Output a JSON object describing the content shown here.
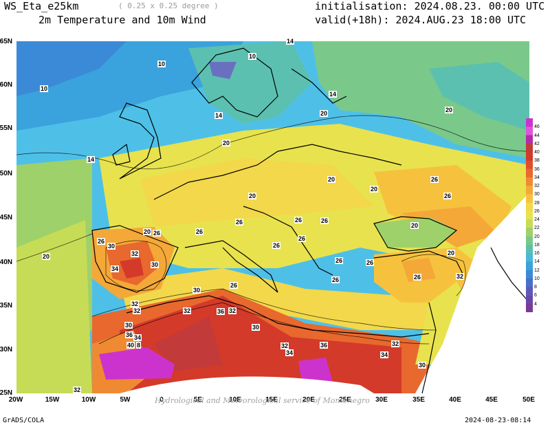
{
  "header": {
    "model": "WS_Eta_e25km",
    "resolution": "( 0.25 x 0.25 degree )",
    "field": "2m Temperature and 10m Wind",
    "init": "initialisation: 2024.08.23. 00:00 UTC",
    "valid": "valid(+18h): 2024.AUG.23 18:00 UTC"
  },
  "footer": {
    "left": "GrADS/COLA",
    "right": "2024-08-23-08:14"
  },
  "credit": "Hydrological and Meteorological service of Montenegro",
  "axes": {
    "lat_labels": [
      "65N",
      "60N",
      "55N",
      "50N",
      "45N",
      "40N",
      "35N",
      "30N",
      "25N"
    ],
    "lon_labels": [
      "20W",
      "15W",
      "10W",
      "5W",
      "0",
      "5E",
      "10E",
      "15E",
      "20E",
      "25E",
      "30E",
      "35E",
      "40E",
      "45E",
      "50E"
    ]
  },
  "colorbar": {
    "ticks": [
      "46",
      "44",
      "42",
      "40",
      "38",
      "36",
      "34",
      "32",
      "30",
      "28",
      "26",
      "24",
      "22",
      "20",
      "18",
      "16",
      "14",
      "12",
      "10",
      "8",
      "6",
      "4"
    ],
    "colors": [
      "#cc33cc",
      "#dd55dd",
      "#b52aa8",
      "#c23a3a",
      "#d33a2a",
      "#e04e2a",
      "#e8682e",
      "#ef8a32",
      "#f4a838",
      "#f6c23e",
      "#f2d84a",
      "#e8e24e",
      "#c7dc56",
      "#9fd16a",
      "#7ac98a",
      "#5cc0b0",
      "#4ab8d6",
      "#3aa2dc",
      "#3b8ad8",
      "#4a6ec8",
      "#5a5ab8",
      "#6b46a8",
      "#7a3a98"
    ]
  },
  "contour_labels": [
    {
      "t": "10"
    },
    {
      "t": "10"
    },
    {
      "t": "10"
    },
    {
      "t": "14"
    },
    {
      "t": "14"
    },
    {
      "t": "14"
    },
    {
      "t": "14"
    },
    {
      "t": "20"
    },
    {
      "t": "20"
    },
    {
      "t": "20"
    },
    {
      "t": "20"
    },
    {
      "t": "20"
    },
    {
      "t": "20"
    },
    {
      "t": "20"
    },
    {
      "t": "20"
    },
    {
      "t": "20"
    },
    {
      "t": "20"
    },
    {
      "t": "26"
    },
    {
      "t": "26"
    },
    {
      "t": "26"
    },
    {
      "t": "26"
    },
    {
      "t": "26"
    },
    {
      "t": "26"
    },
    {
      "t": "26"
    },
    {
      "t": "26"
    },
    {
      "t": "26"
    },
    {
      "t": "26"
    },
    {
      "t": "26"
    },
    {
      "t": "26"
    },
    {
      "t": "26"
    },
    {
      "t": "26"
    },
    {
      "t": "26"
    },
    {
      "t": "30"
    },
    {
      "t": "30"
    },
    {
      "t": "30"
    },
    {
      "t": "30"
    },
    {
      "t": "30"
    },
    {
      "t": "30"
    },
    {
      "t": "32"
    },
    {
      "t": "32"
    },
    {
      "t": "32"
    },
    {
      "t": "32"
    },
    {
      "t": "32"
    },
    {
      "t": "32"
    },
    {
      "t": "32"
    },
    {
      "t": "32"
    },
    {
      "t": "34"
    },
    {
      "t": "34"
    },
    {
      "t": "34"
    },
    {
      "t": "34"
    },
    {
      "t": "36"
    },
    {
      "t": "36"
    },
    {
      "t": "36"
    },
    {
      "t": "40"
    },
    {
      "t": "8"
    },
    {
      "t": "32"
    }
  ]
}
